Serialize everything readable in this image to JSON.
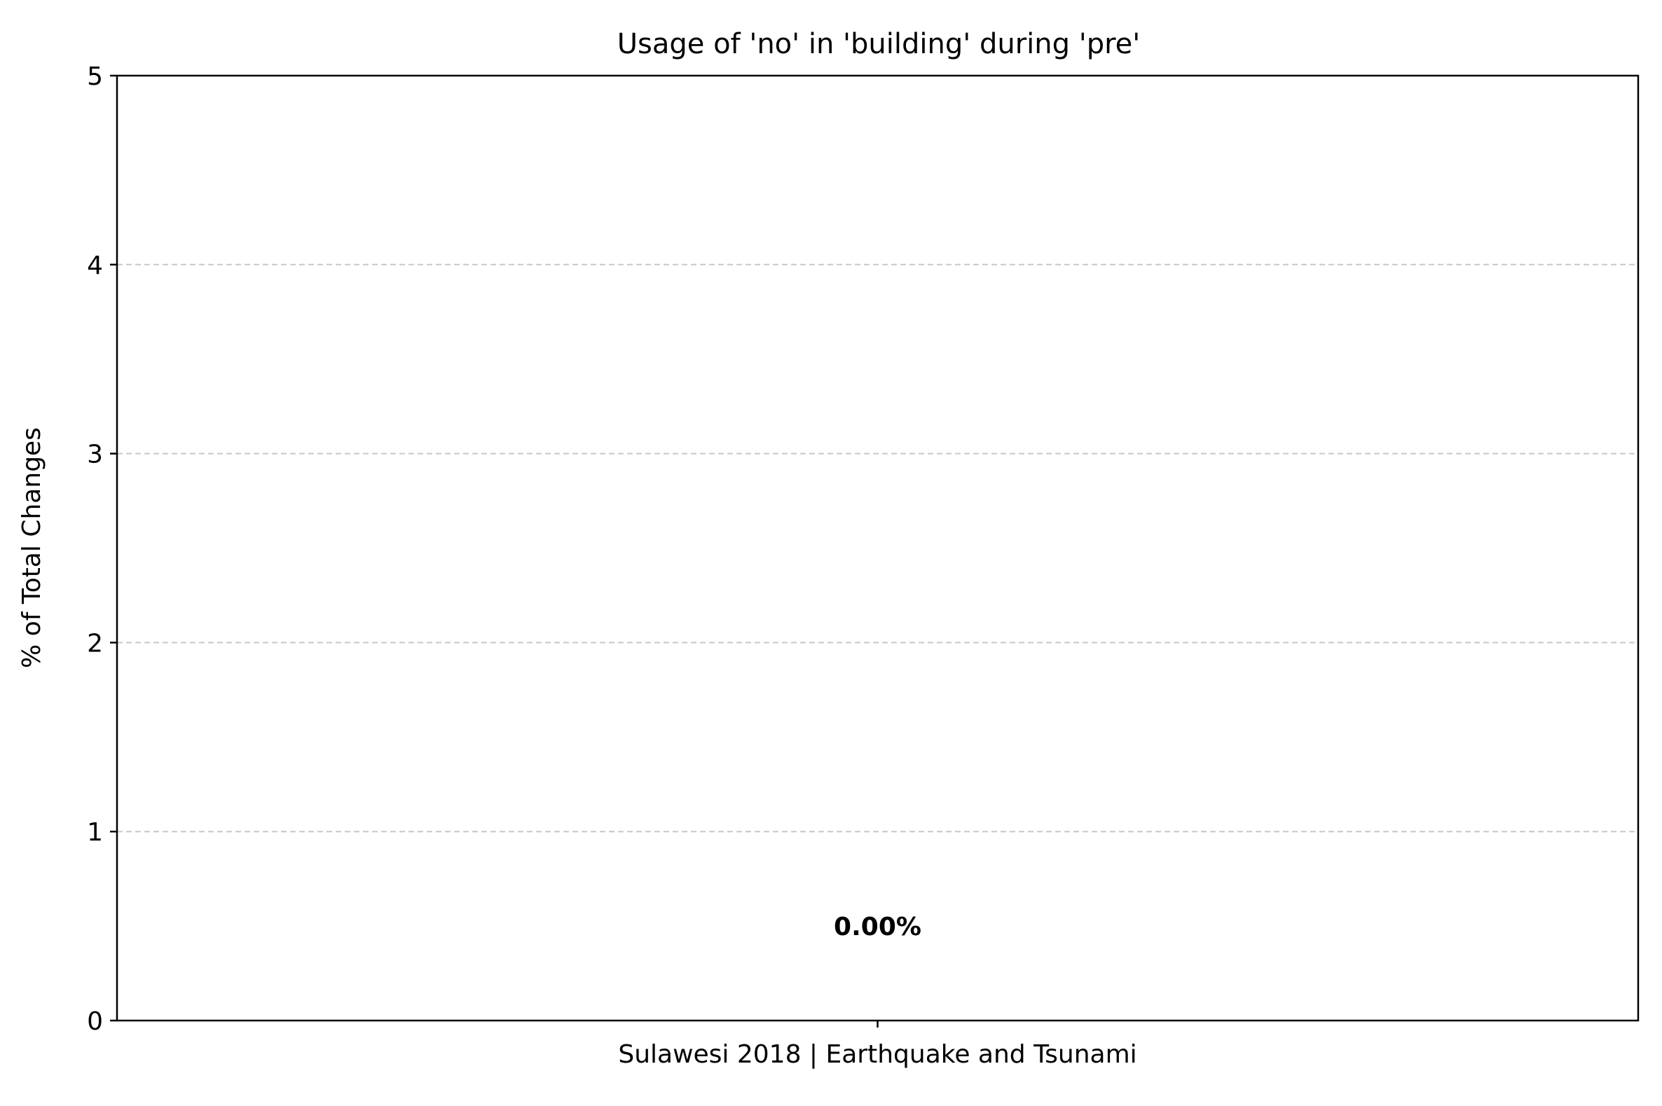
{
  "chart_data": {
    "type": "bar",
    "title": "Usage of 'no' in 'building' during 'pre'",
    "xlabel": "",
    "ylabel": "% of Total Changes",
    "categories": [
      "Sulawesi 2018 | Earthquake and Tsunami"
    ],
    "values": [
      0.0
    ],
    "data_labels": [
      "0.00%"
    ],
    "ylim": [
      0,
      5
    ],
    "yticks": [
      "0",
      "1",
      "2",
      "3",
      "4",
      "5"
    ],
    "grid": "y-dashed",
    "legend": "none"
  },
  "colors": {
    "bar": "#1f77b4",
    "grid": "#c8c8c8",
    "axis": "#000000"
  }
}
